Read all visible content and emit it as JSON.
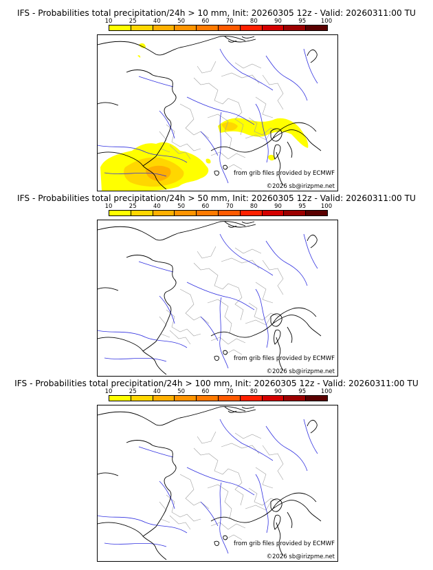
{
  "panels": [
    {
      "title": "IFS - Probabilities total precipitation/24h > 10 mm, Init: 20260305 12z - Valid: 20260311:00 TU",
      "has_precip": true
    },
    {
      "title": "IFS - Probabilities total precipitation/24h > 50 mm, Init: 20260305 12z - Valid: 20260311:00 TU",
      "has_precip": false
    },
    {
      "title": "IFS - Probabilities total precipitation/24h > 100 mm, Init: 20260305 12z - Valid: 20260311:00 TU",
      "has_precip": false
    }
  ],
  "legend": {
    "labels": [
      "10",
      "25",
      "40",
      "50",
      "60",
      "70",
      "80",
      "90",
      "95",
      "100"
    ],
    "colors": [
      "#ffff00",
      "#ffd700",
      "#ffb000",
      "#ff9400",
      "#ff7a00",
      "#ff5a00",
      "#ff2000",
      "#d40000",
      "#9c0000",
      "#5a0000"
    ]
  },
  "credits": {
    "source": "from grib files provided by ECMWF",
    "copyright": "©2026 sb@irizpme.net"
  },
  "map_colors": {
    "coast": "#000000",
    "rivers": "#3030e0",
    "borders": "#a0a0a0"
  }
}
